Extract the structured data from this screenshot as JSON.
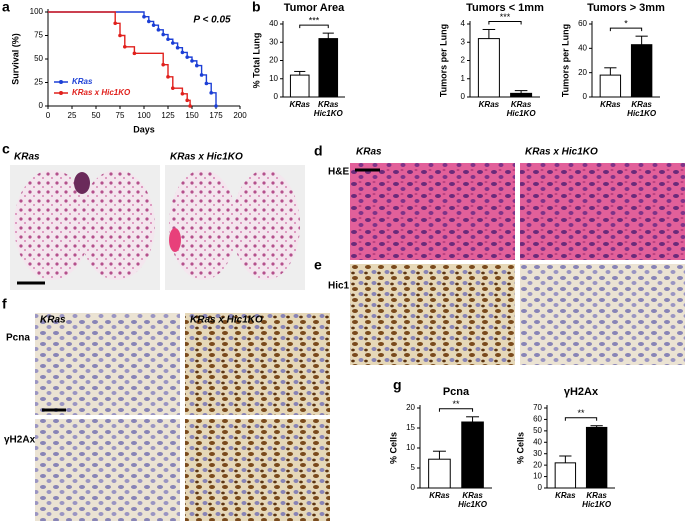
{
  "chart_data": [
    {
      "type": "line",
      "step": true,
      "y_label": "Survival (%)",
      "x_label": "Days",
      "annotation": "P < 0.05",
      "xlim": [
        0,
        200
      ],
      "xticks": [
        0,
        25,
        50,
        75,
        100,
        125,
        150,
        175,
        200
      ],
      "ylim": [
        0,
        100
      ],
      "yticks": [
        0,
        25,
        50,
        75,
        100
      ],
      "legend": "lower left",
      "series": [
        {
          "name": "KRas",
          "color": "#1c3fd6",
          "x": [
            0,
            100,
            105,
            110,
            115,
            120,
            125,
            130,
            135,
            140,
            145,
            150,
            155,
            160,
            165,
            170,
            175
          ],
          "values": [
            100,
            95,
            90,
            86,
            81,
            76,
            71,
            67,
            62,
            57,
            52,
            48,
            43,
            33,
            24,
            14,
            0
          ]
        },
        {
          "name": "KRas x Hic1KO",
          "color": "#e0201c",
          "x": [
            0,
            70,
            75,
            80,
            90,
            120,
            125,
            130,
            140,
            145,
            148
          ],
          "values": [
            100,
            88,
            75,
            63,
            56,
            44,
            31,
            19,
            13,
            6,
            0
          ]
        }
      ]
    },
    {
      "type": "bar",
      "title": "Tumor Area",
      "y_label": "% Total Lung",
      "categories": [
        "KRas",
        "KRas\nHic1KO"
      ],
      "values": [
        12,
        32
      ],
      "errors": [
        2,
        3
      ],
      "colors": [
        "#ffffff",
        "#000000"
      ],
      "ylim": [
        0,
        40
      ],
      "yticks": [
        0,
        10,
        20,
        30,
        40
      ],
      "significance": "***"
    },
    {
      "type": "bar",
      "title": "Tumors < 1mm",
      "y_label": "Tumors per Lung",
      "categories": [
        "KRas",
        "KRas\nHic1KO"
      ],
      "values": [
        3.2,
        0.2
      ],
      "errors": [
        0.5,
        0.15
      ],
      "colors": [
        "#ffffff",
        "#000000"
      ],
      "ylim": [
        0,
        4
      ],
      "yticks": [
        0,
        1,
        2,
        3,
        4
      ],
      "significance": "***"
    },
    {
      "type": "bar",
      "title": "Tumors > 3mm",
      "y_label": "Tumors per Lung",
      "categories": [
        "KRas",
        "KRas\nHic1KO"
      ],
      "values": [
        18,
        43
      ],
      "errors": [
        6,
        7
      ],
      "colors": [
        "#ffffff",
        "#000000"
      ],
      "ylim": [
        0,
        60
      ],
      "yticks": [
        0,
        20,
        40,
        60
      ],
      "significance": "*"
    },
    {
      "type": "bar",
      "title": "Pcna",
      "y_label": "% Cells",
      "categories": [
        "KRas",
        "KRas\nHic1KO"
      ],
      "values": [
        7.2,
        16.5
      ],
      "errors": [
        2,
        1.3
      ],
      "colors": [
        "#ffffff",
        "#000000"
      ],
      "ylim": [
        0,
        20
      ],
      "yticks": [
        0,
        5,
        10,
        15,
        20
      ],
      "significance": "**"
    },
    {
      "type": "bar",
      "title": "γH2Ax",
      "y_label": "% Cells",
      "categories": [
        "KRas",
        "KRas\nHic1KO"
      ],
      "values": [
        22,
        53
      ],
      "errors": [
        6,
        1.5
      ],
      "colors": [
        "#ffffff",
        "#000000"
      ],
      "ylim": [
        0,
        70
      ],
      "yticks": [
        0,
        10,
        20,
        30,
        40,
        50,
        60,
        70
      ],
      "significance": "**"
    }
  ],
  "letters": [
    "a",
    "b",
    "c",
    "d",
    "e",
    "f",
    "g"
  ],
  "image_labels": {
    "c": [
      "KRas",
      "KRas x Hic1KO"
    ],
    "d": [
      "KRas",
      "KRas x Hic1KO"
    ],
    "f": [
      "KRas",
      "KRas x Hic1KO"
    ]
  },
  "row_labels": {
    "d": "H&E",
    "e": "Hic1",
    "f": [
      "Pcna",
      "γH2Ax"
    ]
  }
}
